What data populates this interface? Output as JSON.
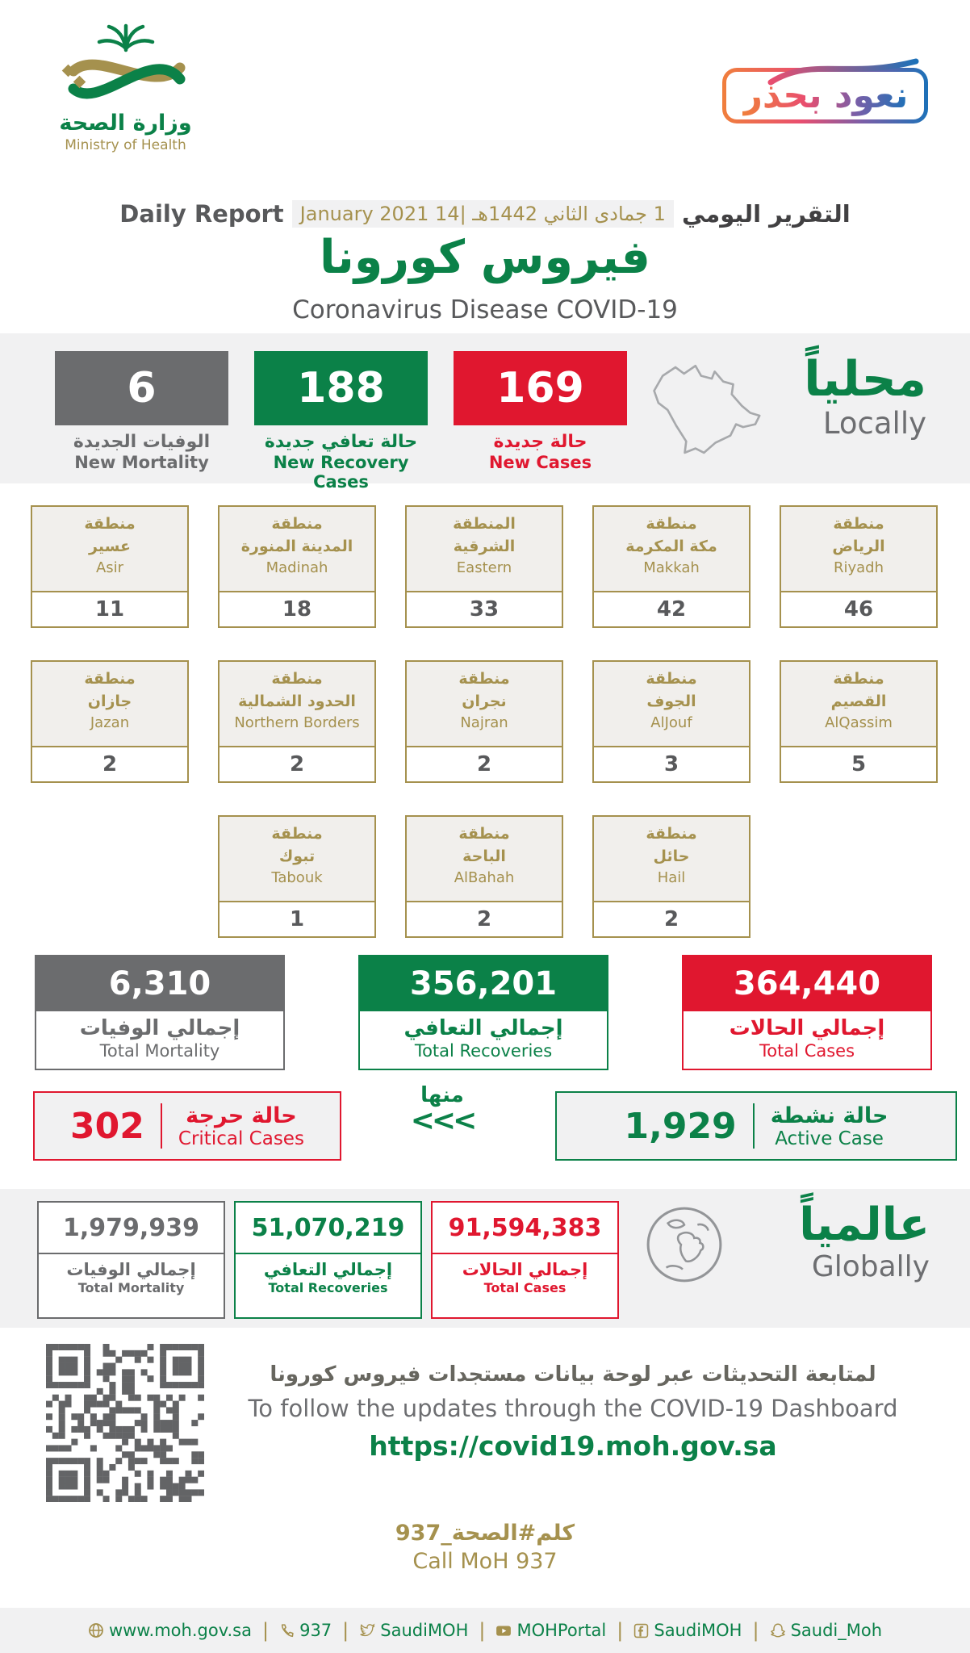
{
  "header": {
    "logo_ar": "وزارة الصحة",
    "logo_en": "Ministry of Health",
    "badge": "نعود بحذر",
    "report_label_en": "Daily Report",
    "report_date": "1 جمادى الثاني 1442هـ |14 January 2021",
    "report_label_ar": "التقرير اليومي",
    "title_ar": "فيروس كورونا",
    "title_en": "Coronavirus Disease COVID-19"
  },
  "locally": {
    "title_ar": "محلياً",
    "title_en": "Locally",
    "stats": [
      {
        "value": "6",
        "label_ar": "الوفيات الجديدة",
        "label_en": "New Mortality",
        "color": "#6b6c6e"
      },
      {
        "value": "188",
        "label_ar": "حالة تعافي جديدة",
        "label_en": "New Recovery Cases",
        "color": "#0b8148"
      },
      {
        "value": "169",
        "label_ar": "حالة جديدة",
        "label_en": "New Cases",
        "color": "#e0172f"
      }
    ]
  },
  "regions": {
    "rows": [
      {
        "cards": [
          {
            "ar1": "منطقة",
            "ar2": "عسير",
            "en": "Asir",
            "value": "11"
          },
          {
            "ar1": "منطقة",
            "ar2": "المدينة المنورة",
            "en": "Madinah",
            "value": "18"
          },
          {
            "ar1": "المنطقة",
            "ar2": "الشرقية",
            "en": "Eastern",
            "value": "33"
          },
          {
            "ar1": "منطقة",
            "ar2": "مكة المكرمة",
            "en": "Makkah",
            "value": "42"
          },
          {
            "ar1": "منطقة",
            "ar2": "الرياض",
            "en": "Riyadh",
            "value": "46"
          }
        ]
      },
      {
        "cards": [
          {
            "ar1": "منطقة",
            "ar2": "جازان",
            "en": "Jazan",
            "value": "2"
          },
          {
            "ar1": "منطقة",
            "ar2": "الحدود الشمالية",
            "en": "Northern Borders",
            "value": "2"
          },
          {
            "ar1": "منطقة",
            "ar2": "نجران",
            "en": "Najran",
            "value": "2"
          },
          {
            "ar1": "منطقة",
            "ar2": "الجوف",
            "en": "AlJouf",
            "value": "3"
          },
          {
            "ar1": "منطقة",
            "ar2": "القصيم",
            "en": "AlQassim",
            "value": "5"
          }
        ]
      },
      {
        "cards": [
          {
            "ar1": "منطقة",
            "ar2": "تبوك",
            "en": "Tabouk",
            "value": "1"
          },
          {
            "ar1": "منطقة",
            "ar2": "الباحة",
            "en": "AlBahah",
            "value": "2"
          },
          {
            "ar1": "منطقة",
            "ar2": "حائل",
            "en": "Hail",
            "value": "2"
          }
        ]
      }
    ]
  },
  "totals": [
    {
      "value": "6,310",
      "label_ar": "إجمالي الوفيات",
      "label_en": "Total Mortality",
      "color": "#6b6c6e"
    },
    {
      "value": "356,201",
      "label_ar": "إجمالي التعافي",
      "label_en": "Total Recoveries",
      "color": "#0b8148"
    },
    {
      "value": "364,440",
      "label_ar": "إجمالي الحالات",
      "label_en": "Total Cases",
      "color": "#e0172f"
    }
  ],
  "status": {
    "critical": {
      "value": "302",
      "label_ar": "حالة حرجة",
      "label_en": "Critical Cases"
    },
    "from_label": "منها",
    "arrows": "<<<",
    "active": {
      "value": "1,929",
      "label_ar": "حالة نشطة",
      "label_en": "Active Case"
    }
  },
  "globally": {
    "title_ar": "عالمياً",
    "title_en": "Globally",
    "stats": [
      {
        "value": "1,979,939",
        "label_ar": "إجمالي الوفيات",
        "label_en": "Total Mortality",
        "color": "#6b6c6e"
      },
      {
        "value": "51,070,219",
        "label_ar": "إجمالي التعافي",
        "label_en": "Total Recoveries",
        "color": "#0b8148"
      },
      {
        "value": "91,594,383",
        "label_ar": "إجمالي الحالات",
        "label_en": "Total Cases",
        "color": "#e0172f"
      }
    ]
  },
  "dashboard": {
    "line_ar": "لمتابعة التحديثات عبر لوحة بيانات مستجدات فيروس كورونا",
    "line_en": "To follow the updates through the COVID-19 Dashboard",
    "url": "https://covid19.moh.gov.sa"
  },
  "call": {
    "ar": "كلم#الصحة_937",
    "en": "Call MoH 937"
  },
  "footer": {
    "items": [
      {
        "icon": "globe-icon",
        "text": "www.moh.gov.sa"
      },
      {
        "icon": "phone-icon",
        "text": "937"
      },
      {
        "icon": "twitter-icon",
        "text": "SaudiMOH"
      },
      {
        "icon": "youtube-icon",
        "text": "MOHPortal"
      },
      {
        "icon": "facebook-icon",
        "text": "SaudiMOH"
      },
      {
        "icon": "snapchat-icon",
        "text": "Saudi_Moh"
      }
    ]
  },
  "colors": {
    "green": "#0b8148",
    "red": "#e0172f",
    "gray": "#6b6c6e",
    "gold": "#a5914e",
    "band": "#f1f1f2"
  }
}
